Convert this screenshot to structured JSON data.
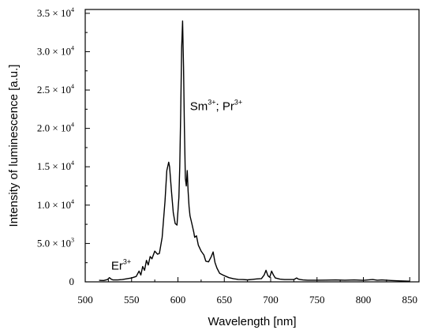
{
  "chart_data": {
    "type": "line",
    "title": "",
    "xlabel": "Wavelength [nm]",
    "ylabel": "Intensity of luminescence [a.u.]",
    "xlim": [
      500,
      860
    ],
    "ylim": [
      0,
      35500
    ],
    "grid": false,
    "x_ticks": [
      {
        "value": 500,
        "label": "500"
      },
      {
        "value": 550,
        "label": "550"
      },
      {
        "value": 600,
        "label": "600"
      },
      {
        "value": 650,
        "label": "650"
      },
      {
        "value": 700,
        "label": "700"
      },
      {
        "value": 750,
        "label": "750"
      },
      {
        "value": 800,
        "label": "800"
      },
      {
        "value": 850,
        "label": "850"
      }
    ],
    "y_ticks": [
      {
        "value": 0,
        "mantissa": "0",
        "exponent": ""
      },
      {
        "value": 5000,
        "mantissa": "5.0 × 10",
        "exponent": "3"
      },
      {
        "value": 10000,
        "mantissa": "1.0 × 10",
        "exponent": "4"
      },
      {
        "value": 15000,
        "mantissa": "1.5 × 10",
        "exponent": "4"
      },
      {
        "value": 20000,
        "mantissa": "2.0 × 10",
        "exponent": "4"
      },
      {
        "value": 25000,
        "mantissa": "2.5 × 10",
        "exponent": "4"
      },
      {
        "value": 30000,
        "mantissa": "3.0 × 10",
        "exponent": "4"
      },
      {
        "value": 35000,
        "mantissa": "3.5 × 10",
        "exponent": "4"
      }
    ],
    "annotations": [
      {
        "base": "Er",
        "sup": "3+",
        "x": 528,
        "y": 1600
      },
      {
        "base": "Sm",
        "sup": "3+",
        "tail": "; Pr",
        "tail_sup": "3+",
        "x": 613,
        "y": 22400
      }
    ],
    "series": [
      {
        "color": "#000000",
        "x": [
          515,
          520,
          524,
          526,
          528,
          530,
          535,
          540,
          545,
          550,
          555,
          558,
          560,
          562,
          564,
          566,
          568,
          570,
          572,
          575,
          578,
          580,
          583,
          586,
          588,
          590,
          591,
          593,
          595,
          597,
          599,
          601,
          602,
          603,
          604,
          605,
          606,
          607,
          608,
          609,
          610,
          611,
          612,
          613,
          615,
          617,
          618,
          620,
          622,
          625,
          628,
          630,
          633,
          636,
          638,
          640,
          642,
          645,
          650,
          655,
          660,
          665,
          670,
          675,
          680,
          685,
          690,
          693,
          695,
          697,
          699,
          701,
          703,
          705,
          710,
          715,
          720,
          725,
          728,
          730,
          732,
          735,
          740,
          750,
          760,
          770,
          780,
          790,
          800,
          810,
          815,
          820,
          830,
          840,
          850
        ],
        "y": [
          200,
          180,
          300,
          550,
          350,
          250,
          250,
          300,
          400,
          500,
          700,
          1400,
          900,
          2000,
          1500,
          2800,
          2200,
          3300,
          3000,
          4000,
          3600,
          3700,
          5800,
          10500,
          14500,
          15600,
          15000,
          11800,
          9000,
          7600,
          7400,
          11000,
          15000,
          22000,
          30500,
          34000,
          28000,
          20000,
          13500,
          12500,
          14500,
          11800,
          9800,
          8600,
          7600,
          6500,
          5800,
          6000,
          4800,
          4000,
          3500,
          2700,
          2600,
          3300,
          3900,
          2500,
          1800,
          1100,
          800,
          550,
          400,
          320,
          300,
          260,
          320,
          380,
          420,
          900,
          1500,
          800,
          600,
          1400,
          900,
          500,
          350,
          300,
          300,
          300,
          500,
          350,
          300,
          250,
          220,
          220,
          230,
          250,
          220,
          250,
          200,
          300,
          220,
          250,
          180,
          120,
          80
        ]
      }
    ]
  }
}
